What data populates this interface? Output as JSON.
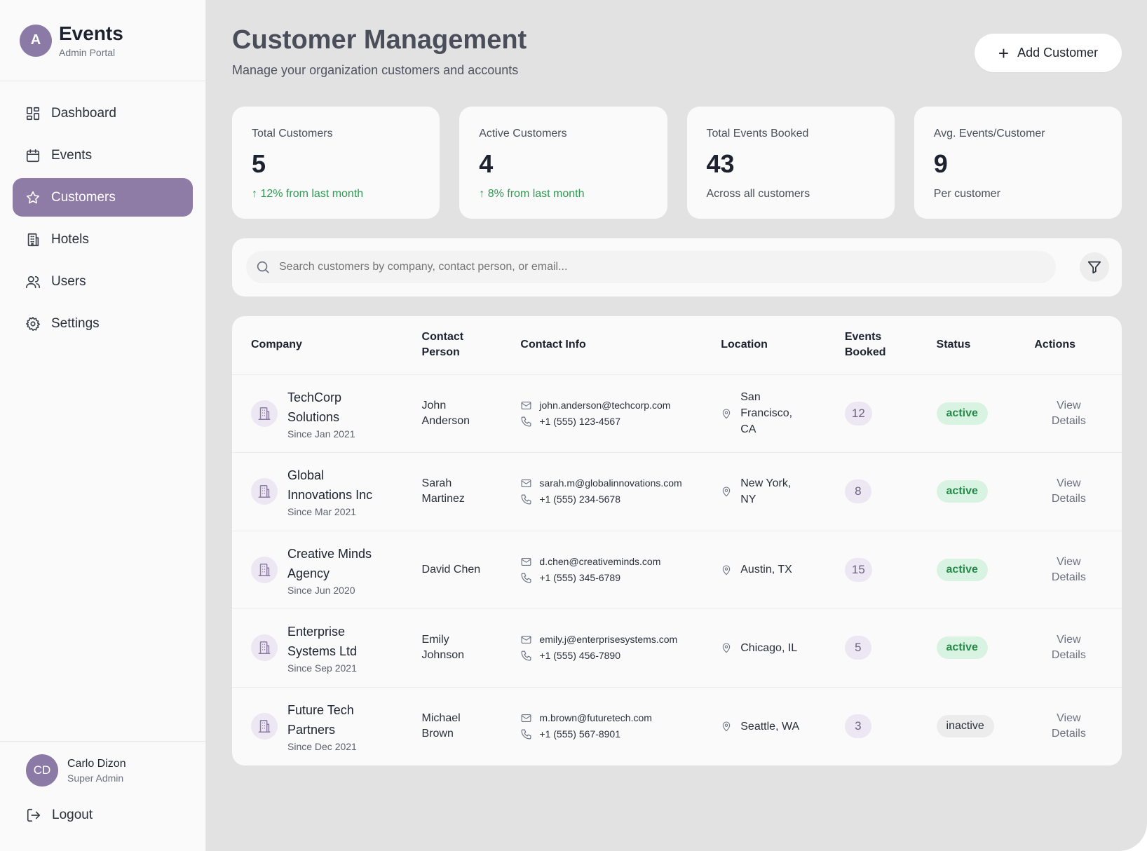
{
  "brand": {
    "logo_letter": "A",
    "title": "Events",
    "subtitle": "Admin Portal"
  },
  "sidebar": {
    "items": [
      {
        "label": "Dashboard",
        "icon": "dashboard-icon"
      },
      {
        "label": "Events",
        "icon": "calendar-icon"
      },
      {
        "label": "Customers",
        "icon": "star-icon",
        "active": true
      },
      {
        "label": "Hotels",
        "icon": "building-icon"
      },
      {
        "label": "Users",
        "icon": "users-icon"
      },
      {
        "label": "Settings",
        "icon": "gear-icon"
      }
    ],
    "user": {
      "initials": "CD",
      "name": "Carlo Dizon",
      "role": "Super Admin"
    },
    "logout_label": "Logout"
  },
  "header": {
    "title": "Customer Management",
    "subtitle": "Manage your organization customers and accounts",
    "add_button_label": "Add Customer"
  },
  "stats": [
    {
      "label": "Total Customers",
      "value": "5",
      "note": "↑ 12% from last month",
      "trend": "up"
    },
    {
      "label": "Active Customers",
      "value": "4",
      "note": "↑ 8% from last month",
      "trend": "up"
    },
    {
      "label": "Total Events Booked",
      "value": "43",
      "note": "Across all customers",
      "trend": "none"
    },
    {
      "label": "Avg. Events/Customer",
      "value": "9",
      "note": "Per customer",
      "trend": "none"
    }
  ],
  "search": {
    "placeholder": "Search customers by company, contact person, or email..."
  },
  "table": {
    "headers": {
      "company": "Company",
      "contact_person": "Contact Person",
      "contact_info": "Contact Info",
      "location": "Location",
      "events_booked": "Events Booked",
      "status": "Status",
      "actions": "Actions"
    },
    "rows": [
      {
        "company": "TechCorp Solutions",
        "since": "Since Jan 2021",
        "contact": "John Anderson",
        "email": "john.anderson@techcorp.com",
        "phone": "+1 (555) 123-4567",
        "location": "San Francisco, CA",
        "events": "12",
        "status": "active",
        "action": "View Details"
      },
      {
        "company": "Global Innovations Inc",
        "since": "Since Mar 2021",
        "contact": "Sarah Martinez",
        "email": "sarah.m@globalinnovations.com",
        "phone": "+1 (555) 234-5678",
        "location": "New York, NY",
        "events": "8",
        "status": "active",
        "action": "View Details"
      },
      {
        "company": "Creative Minds Agency",
        "since": "Since Jun 2020",
        "contact": "David Chen",
        "email": "d.chen@creativeminds.com",
        "phone": "+1 (555) 345-6789",
        "location": "Austin, TX",
        "events": "15",
        "status": "active",
        "action": "View Details"
      },
      {
        "company": "Enterprise Systems Ltd",
        "since": "Since Sep 2021",
        "contact": "Emily Johnson",
        "email": "emily.j@enterprisesystems.com",
        "phone": "+1 (555) 456-7890",
        "location": "Chicago, IL",
        "events": "5",
        "status": "active",
        "action": "View Details"
      },
      {
        "company": "Future Tech Partners",
        "since": "Since Dec 2021",
        "contact": "Michael Brown",
        "email": "m.brown@futuretech.com",
        "phone": "+1 (555) 567-8901",
        "location": "Seattle, WA",
        "events": "3",
        "status": "inactive",
        "action": "View Details"
      }
    ]
  },
  "colors": {
    "accent": "#8e7ba6",
    "active_status_bg": "#d9f3e2",
    "active_status_text": "#268a49",
    "trend_up": "#2e9a53"
  }
}
